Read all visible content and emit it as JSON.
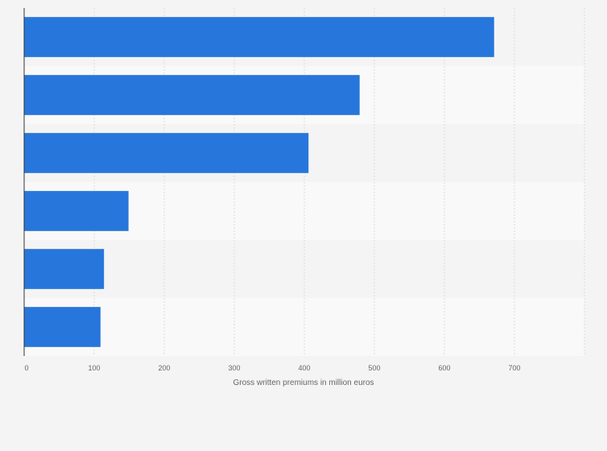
{
  "chart_data": {
    "type": "bar",
    "orientation": "horizontal",
    "categories": [
      "",
      "",
      "",
      "",
      "",
      ""
    ],
    "values": [
      671,
      479,
      406,
      149,
      114,
      109
    ],
    "title": "",
    "xlabel": "Gross written premiums in million euros",
    "ylabel": "",
    "xlim": [
      0,
      800
    ],
    "xticks": [
      0,
      100,
      200,
      300,
      400,
      500,
      600,
      700
    ],
    "xtick_labels": [
      "0",
      "100",
      "200",
      "300",
      "400",
      "500",
      "600",
      "700"
    ],
    "grid": true,
    "bar_color": "#2776dc"
  }
}
